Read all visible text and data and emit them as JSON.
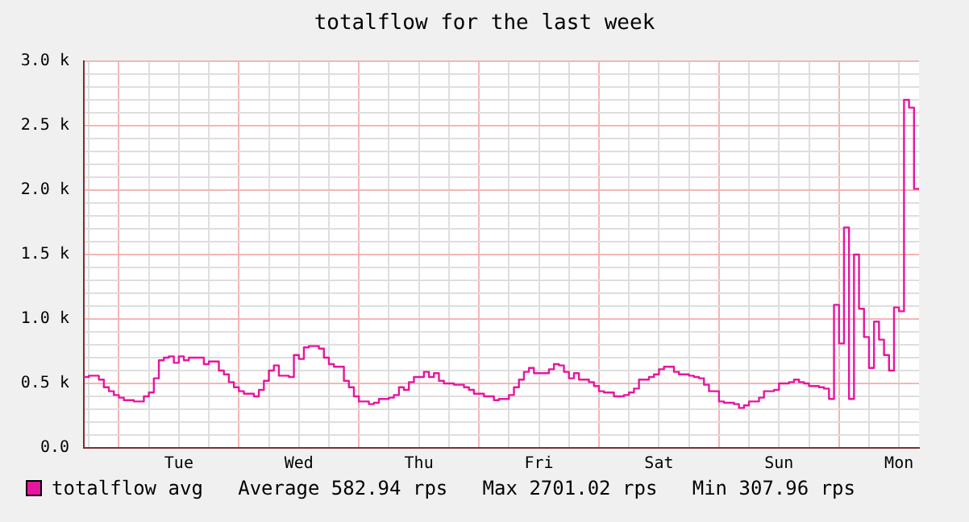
{
  "chart_data": {
    "type": "step",
    "title": "totalflow for the last week",
    "categories": [
      null,
      null,
      null,
      null,
      null,
      null,
      null,
      null,
      null,
      null,
      null,
      null,
      null,
      null,
      null,
      null,
      null,
      null,
      null,
      "Tue",
      null,
      null,
      null,
      null,
      null,
      null,
      null,
      null,
      null,
      null,
      null,
      null,
      null,
      null,
      null,
      null,
      null,
      null,
      null,
      null,
      null,
      null,
      null,
      "Wed",
      null,
      null,
      null,
      null,
      null,
      null,
      null,
      null,
      null,
      null,
      null,
      null,
      null,
      null,
      null,
      null,
      null,
      null,
      null,
      null,
      null,
      null,
      null,
      "Thu",
      null,
      null,
      null,
      null,
      null,
      null,
      null,
      null,
      null,
      null,
      null,
      null,
      null,
      null,
      null,
      null,
      null,
      null,
      null,
      null,
      null,
      null,
      null,
      "Fri",
      null,
      null,
      null,
      null,
      null,
      null,
      null,
      null,
      null,
      null,
      null,
      null,
      null,
      null,
      null,
      null,
      null,
      null,
      null,
      null,
      null,
      null,
      null,
      "Sat",
      null,
      null,
      null,
      null,
      null,
      null,
      null,
      null,
      null,
      null,
      null,
      null,
      null,
      null,
      null,
      null,
      null,
      null,
      null,
      null,
      null,
      null,
      null,
      "Sun",
      null,
      null,
      null,
      null,
      null,
      null,
      null,
      null,
      null,
      null,
      null,
      null,
      null,
      null,
      null,
      null,
      null,
      null,
      null,
      null,
      null,
      null,
      null,
      "Mon",
      null,
      null,
      null,
      null
    ],
    "series": [
      {
        "name": "totalflow avg",
        "color": "#e6169e",
        "values": [
          550,
          560,
          560,
          530,
          470,
          440,
          410,
          390,
          370,
          370,
          360,
          360,
          400,
          430,
          540,
          680,
          700,
          710,
          660,
          710,
          680,
          700,
          700,
          700,
          650,
          670,
          670,
          600,
          570,
          510,
          470,
          440,
          420,
          420,
          400,
          450,
          520,
          600,
          640,
          560,
          560,
          550,
          720,
          690,
          780,
          790,
          790,
          770,
          700,
          650,
          630,
          630,
          520,
          470,
          400,
          360,
          360,
          340,
          350,
          380,
          380,
          390,
          410,
          470,
          450,
          510,
          550,
          550,
          590,
          550,
          580,
          520,
          500,
          500,
          490,
          490,
          470,
          450,
          420,
          420,
          400,
          400,
          370,
          380,
          380,
          410,
          470,
          530,
          590,
          620,
          580,
          580,
          580,
          610,
          650,
          640,
          590,
          540,
          580,
          530,
          530,
          510,
          480,
          440,
          430,
          430,
          400,
          400,
          410,
          430,
          460,
          530,
          530,
          550,
          570,
          610,
          630,
          630,
          590,
          570,
          570,
          560,
          550,
          540,
          490,
          440,
          440,
          360,
          350,
          350,
          340,
          310,
          330,
          360,
          360,
          390,
          440,
          440,
          450,
          500,
          500,
          510,
          530,
          510,
          500,
          480,
          480,
          470,
          460,
          380,
          1110,
          810,
          1710,
          380,
          1500,
          1080,
          860,
          620,
          980,
          840,
          720,
          600,
          1090,
          1060,
          2700,
          2640,
          2010,
          2010
        ]
      }
    ],
    "ylim": [
      0,
      3000
    ],
    "yticks": [
      {
        "value": 0,
        "label": "0.0"
      },
      {
        "value": 100,
        "label": null
      },
      {
        "value": 200,
        "label": null
      },
      {
        "value": 300,
        "label": null
      },
      {
        "value": 400,
        "label": null
      },
      {
        "value": 500,
        "label": "0.5 k"
      },
      {
        "value": 600,
        "label": null
      },
      {
        "value": 700,
        "label": null
      },
      {
        "value": 800,
        "label": null
      },
      {
        "value": 900,
        "label": null
      },
      {
        "value": 1000,
        "label": "1.0 k"
      },
      {
        "value": 1100,
        "label": null
      },
      {
        "value": 1200,
        "label": null
      },
      {
        "value": 1300,
        "label": null
      },
      {
        "value": 1400,
        "label": null
      },
      {
        "value": 1500,
        "label": "1.5 k"
      },
      {
        "value": 1600,
        "label": null
      },
      {
        "value": 1700,
        "label": null
      },
      {
        "value": 1800,
        "label": null
      },
      {
        "value": 1900,
        "label": null
      },
      {
        "value": 2000,
        "label": "2.0 k"
      },
      {
        "value": 2100,
        "label": null
      },
      {
        "value": 2200,
        "label": null
      },
      {
        "value": 2300,
        "label": null
      },
      {
        "value": 2400,
        "label": null
      },
      {
        "value": 2500,
        "label": "2.5 k"
      },
      {
        "value": 2600,
        "label": null
      },
      {
        "value": 2700,
        "label": null
      },
      {
        "value": 2800,
        "label": null
      },
      {
        "value": 2900,
        "label": null
      },
      {
        "value": 3000,
        "label": "3.0 k"
      }
    ],
    "grid": true,
    "legend": "bottom",
    "marker": "none",
    "line_style": "solid",
    "annotations": [
      "Average 582.94 rps   Max 2701.02 rps   Min 307.96 rps"
    ]
  }
}
